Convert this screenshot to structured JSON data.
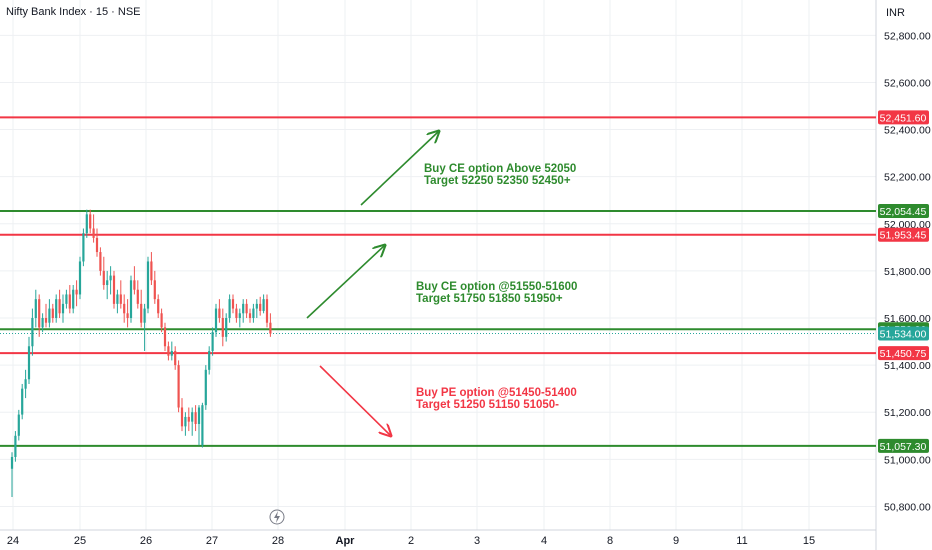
{
  "header": {
    "symbol_title": "Nifty Bank Index · 15 · NSE",
    "currency": "INR"
  },
  "colors": {
    "green": "#2e8b2e",
    "red": "#f23645",
    "teal": "#26a69a",
    "candle_up": "#26a69a",
    "candle_down": "#ef5350",
    "grid": "#eef0f3",
    "axis_text": "#131722"
  },
  "chart_data": {
    "type": "candlestick",
    "title": "Nifty Bank Index · 15 · NSE",
    "ylim": [
      50700,
      52950
    ],
    "yticks": [
      50800,
      51000,
      51200,
      51400,
      51600,
      51800,
      52000,
      52200,
      52400,
      52600,
      52800
    ],
    "ytick_labels": [
      "50,800.00",
      "51,000.00",
      "51,200.00",
      "51,400.00",
      "51,600.00",
      "51,800.00",
      "52,000.00",
      "52,200.00",
      "52,400.00",
      "52,600.00",
      "52,800.00"
    ],
    "xticks": [
      "24",
      "25",
      "26",
      "27",
      "28",
      "Apr",
      "2",
      "3",
      "4",
      "8",
      "9",
      "11",
      "15"
    ],
    "grid": true,
    "candles": [
      [
        50960,
        51030,
        50840,
        51010
      ],
      [
        51010,
        51120,
        50990,
        51100
      ],
      [
        51100,
        51210,
        51080,
        51190
      ],
      [
        51190,
        51320,
        51170,
        51300
      ],
      [
        51300,
        51380,
        51260,
        51340
      ],
      [
        51340,
        51520,
        51320,
        51480
      ],
      [
        51480,
        51640,
        51440,
        51600
      ],
      [
        51600,
        51720,
        51560,
        51680
      ],
      [
        51680,
        51700,
        51520,
        51560
      ],
      [
        51560,
        51620,
        51540,
        51600
      ],
      [
        51600,
        51660,
        51560,
        51580
      ],
      [
        51580,
        51680,
        51560,
        51640
      ],
      [
        51640,
        51660,
        51580,
        51600
      ],
      [
        51600,
        51700,
        51580,
        51680
      ],
      [
        51680,
        51720,
        51600,
        51620
      ],
      [
        51620,
        51700,
        51580,
        51660
      ],
      [
        51660,
        51720,
        51640,
        51700
      ],
      [
        51700,
        51740,
        51620,
        51640
      ],
      [
        51640,
        51740,
        51620,
        51720
      ],
      [
        51720,
        51760,
        51650,
        51700
      ],
      [
        51700,
        51860,
        51680,
        51840
      ],
      [
        51840,
        51980,
        51820,
        51960
      ],
      [
        51960,
        52060,
        51940,
        52040
      ],
      [
        52040,
        52060,
        51960,
        51980
      ],
      [
        51980,
        52040,
        51920,
        51940
      ],
      [
        51940,
        51980,
        51860,
        51880
      ],
      [
        51880,
        51900,
        51780,
        51800
      ],
      [
        51800,
        51860,
        51720,
        51740
      ],
      [
        51740,
        51800,
        51680,
        51760
      ],
      [
        51760,
        51820,
        51700,
        51780
      ],
      [
        51780,
        51800,
        51640,
        51660
      ],
      [
        51660,
        51720,
        51620,
        51700
      ],
      [
        51700,
        51760,
        51640,
        51660
      ],
      [
        51660,
        51700,
        51580,
        51620
      ],
      [
        51620,
        51680,
        51560,
        51600
      ],
      [
        51600,
        51780,
        51580,
        51760
      ],
      [
        51760,
        51820,
        51700,
        51720
      ],
      [
        51720,
        51760,
        51640,
        51660
      ],
      [
        51660,
        51720,
        51560,
        51580
      ],
      [
        51580,
        51660,
        51460,
        51640
      ],
      [
        51640,
        51860,
        51620,
        51840
      ],
      [
        51840,
        51880,
        51740,
        51760
      ],
      [
        51760,
        51800,
        51660,
        51680
      ],
      [
        51680,
        51700,
        51600,
        51620
      ],
      [
        51620,
        51640,
        51540,
        51560
      ],
      [
        51560,
        51580,
        51460,
        51480
      ],
      [
        51480,
        51500,
        51420,
        51440
      ],
      [
        51440,
        51500,
        51420,
        51460
      ],
      [
        51460,
        51480,
        51380,
        51400
      ],
      [
        51400,
        51420,
        51200,
        51220
      ],
      [
        51220,
        51260,
        51120,
        51140
      ],
      [
        51140,
        51200,
        51100,
        51180
      ],
      [
        51180,
        51220,
        51120,
        51160
      ],
      [
        51160,
        51220,
        51100,
        51200
      ],
      [
        51200,
        51230,
        51120,
        51150
      ],
      [
        51150,
        51230,
        51060,
        51220
      ],
      [
        51060,
        51240,
        51050,
        51230
      ],
      [
        51230,
        51400,
        51210,
        51380
      ],
      [
        51380,
        51480,
        51360,
        51460
      ],
      [
        51460,
        51560,
        51440,
        51540
      ],
      [
        51540,
        51660,
        51520,
        51640
      ],
      [
        51640,
        51680,
        51580,
        51600
      ],
      [
        51600,
        51640,
        51480,
        51520
      ],
      [
        51520,
        51620,
        51500,
        51600
      ],
      [
        51600,
        51700,
        51580,
        51680
      ],
      [
        51680,
        51700,
        51620,
        51640
      ],
      [
        51640,
        51660,
        51580,
        51600
      ],
      [
        51600,
        51640,
        51560,
        51620
      ],
      [
        51620,
        51680,
        51580,
        51660
      ],
      [
        51660,
        51680,
        51600,
        51620
      ],
      [
        51620,
        51640,
        51580,
        51600
      ],
      [
        51600,
        51660,
        51580,
        51640
      ],
      [
        51640,
        51680,
        51600,
        51660
      ],
      [
        51660,
        51690,
        51610,
        51630
      ],
      [
        51630,
        51700,
        51620,
        51680
      ],
      [
        51680,
        51700,
        51560,
        51580
      ],
      [
        51580,
        51620,
        51520,
        51534
      ]
    ],
    "levels": [
      {
        "label": "52,451.60",
        "value": 52451.6,
        "color": "#f23645"
      },
      {
        "label": "52,054.45",
        "value": 52054.45,
        "color": "#2e8b2e"
      },
      {
        "label": "51,953.45",
        "value": 51953.45,
        "color": "#f23645"
      },
      {
        "label": "51,552.30",
        "value": 51552.3,
        "color": "#2e8b2e"
      },
      {
        "label": "51,534.00",
        "value": 51534.0,
        "color": "#26a69a"
      },
      {
        "label": "51,450.75",
        "value": 51450.75,
        "color": "#f23645"
      },
      {
        "label": "51,057.30",
        "value": 51057.3,
        "color": "#2e8b2e"
      }
    ],
    "annotations": [
      {
        "lines": [
          "Buy CE option Above 52050",
          "Target 52250 52350 52450+"
        ],
        "color": "#2e8b2e"
      },
      {
        "lines": [
          "Buy CE option @51550-51600",
          "Target 51750 51850 51950+"
        ],
        "color": "#2e8b2e"
      },
      {
        "lines": [
          "Buy PE option @51450-51400",
          "Target 51250 51150 51050-"
        ],
        "color": "#f23645"
      }
    ]
  }
}
